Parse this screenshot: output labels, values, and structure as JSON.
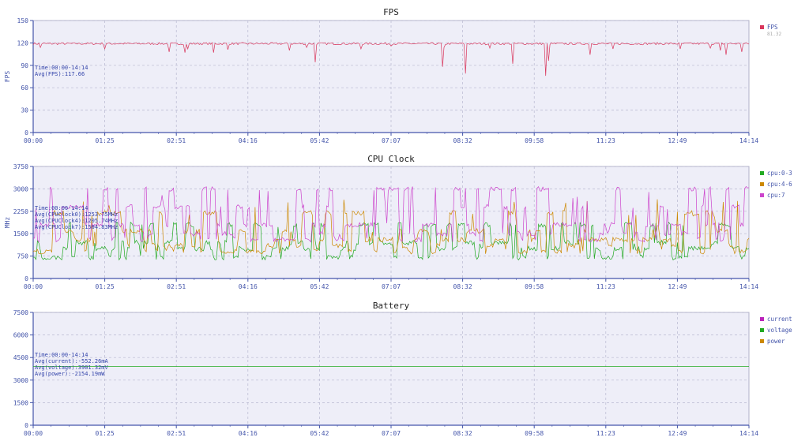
{
  "chart_data": [
    {
      "type": "line",
      "title": "FPS",
      "xlabel": "",
      "ylabel": "FPS",
      "ylim": [
        0,
        150
      ],
      "yticks": [
        0,
        30,
        60,
        90,
        120,
        150
      ],
      "x_tick_labels": [
        "00:00",
        "01:25",
        "02:51",
        "04:16",
        "05:42",
        "07:07",
        "08:32",
        "09:58",
        "11:23",
        "12:49",
        "14:14"
      ],
      "xlim_seconds": [
        0,
        854
      ],
      "grid": true,
      "legend_position": "right",
      "annotation": [
        "Time:00:00-14:14",
        "Avg(FPS):117.66"
      ],
      "series": [
        {
          "name": "FPS",
          "legend_sub": "81.32",
          "color": "#d9365c",
          "baseline": 119,
          "noise": 1.5,
          "dips": [
            [
              9,
              114
            ],
            [
              85,
              112
            ],
            [
              162,
              108
            ],
            [
              181,
              107
            ],
            [
              185,
              112
            ],
            [
              216,
              107
            ],
            [
              233,
              111
            ],
            [
              305,
              110
            ],
            [
              326,
              114
            ],
            [
              337,
              94
            ],
            [
              391,
              112
            ],
            [
              427,
              116
            ],
            [
              490,
              114
            ],
            [
              488,
              88
            ],
            [
              516,
              79
            ],
            [
              545,
              113
            ],
            [
              572,
              92
            ],
            [
              611,
              76
            ],
            [
              615,
              96
            ],
            [
              664,
              104
            ],
            [
              692,
              112
            ],
            [
              772,
              112
            ],
            [
              808,
              113
            ],
            [
              820,
              110
            ],
            [
              827,
              104
            ],
            [
              845,
              108
            ],
            [
              860,
              100
            ],
            [
              873,
              95
            ]
          ]
        }
      ]
    },
    {
      "type": "line",
      "title": "CPU Clock",
      "xlabel": "",
      "ylabel": "MHz",
      "ylim": [
        0,
        3750
      ],
      "yticks": [
        0,
        750,
        1500,
        2250,
        3000,
        3750
      ],
      "x_tick_labels": [
        "00:00",
        "01:25",
        "02:51",
        "04:16",
        "05:42",
        "07:07",
        "08:32",
        "09:58",
        "11:23",
        "12:49",
        "14:14"
      ],
      "xlim_seconds": [
        0,
        854
      ],
      "grid": true,
      "legend_position": "right",
      "annotation": [
        "Time:00:00-14:14",
        "Avg(CPUClock0):1253.75MHz",
        "Avg(CPUClock4):1205.74MHz",
        "Avg(CPUClock7):1504.83MHz"
      ],
      "series": [
        {
          "name": "cpu:0-3",
          "color": "#22aa22",
          "levels": [
            700,
            1000,
            1200,
            1800
          ],
          "mean": 1253
        },
        {
          "name": "cpu:4-6",
          "color": "#cc8800",
          "levels": [
            900,
            1100,
            1300,
            1600,
            2200
          ],
          "mean": 1205
        },
        {
          "name": "cpu:7",
          "color": "#cc44cc",
          "levels": [
            1300,
            1500,
            1800,
            2400,
            3000
          ],
          "mean": 1504
        }
      ]
    },
    {
      "type": "line",
      "title": "Battery",
      "xlabel": "",
      "ylabel": "",
      "ylim": [
        0,
        7500
      ],
      "yticks": [
        0,
        1500,
        3000,
        4500,
        6000,
        7500
      ],
      "x_tick_labels": [
        "00:00",
        "01:25",
        "02:51",
        "04:16",
        "05:42",
        "07:07",
        "08:32",
        "09:58",
        "11:23",
        "12:49",
        "14:14"
      ],
      "xlim_seconds": [
        0,
        854
      ],
      "grid": true,
      "legend_position": "right",
      "annotation": [
        "Time:00:00-14:14",
        "Avg(current):-552.26mA",
        "Avg(voltage):3901.32mV",
        "Avg(power):-2154.19mW"
      ],
      "series": [
        {
          "name": "current",
          "color": "#bb22bb",
          "values_constant": null
        },
        {
          "name": "voltage",
          "color": "#22aa22",
          "values_constant": 3901
        },
        {
          "name": "power",
          "color": "#cc8800",
          "values_constant": null
        }
      ]
    }
  ]
}
